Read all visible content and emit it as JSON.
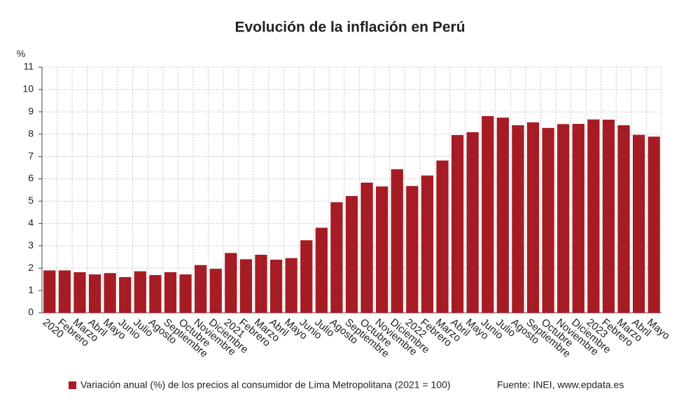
{
  "chart_data": {
    "type": "bar",
    "title": "Evolución de la inflación en Perú",
    "y_unit": "%",
    "categories": [
      "2020",
      "Febrero",
      "Marzo",
      "Abril",
      "Mayo",
      "Junio",
      "Julio",
      "Agosto",
      "Septiembre",
      "Octubre",
      "Noviembre",
      "Diciembre",
      "2021",
      "Febrero",
      "Marzo",
      "Abril",
      "Mayo",
      "Junio",
      "Julio",
      "Agosto",
      "Septiembre",
      "Octubre",
      "Noviembre",
      "Diciembre",
      "2022",
      "Febrero",
      "Marzo",
      "Abril",
      "Mayo",
      "Junio",
      "Julio",
      "Agosto",
      "Septiembre",
      "Octubre",
      "Noviembre",
      "Diciembre",
      "2023",
      "Febrero",
      "Marzo",
      "Abril",
      "Mayo"
    ],
    "series": [
      {
        "name": "Variación anual (%) de los precios al consumidor de Lima Metropolitana (2021 = 100)",
        "color": "#a61c24",
        "values": [
          1.9,
          1.9,
          1.82,
          1.72,
          1.78,
          1.6,
          1.86,
          1.69,
          1.82,
          1.72,
          2.14,
          1.97,
          2.68,
          2.4,
          2.6,
          2.38,
          2.45,
          3.25,
          3.81,
          4.95,
          5.23,
          5.83,
          5.66,
          6.43,
          5.68,
          6.15,
          6.82,
          7.96,
          8.09,
          8.81,
          8.74,
          8.4,
          8.53,
          8.28,
          8.45,
          8.46,
          8.66,
          8.65,
          8.4,
          7.97,
          7.89
        ]
      }
    ],
    "ylim": [
      0,
      11
    ],
    "yticks": [
      0,
      1,
      2,
      3,
      4,
      5,
      6,
      7,
      8,
      9,
      10,
      11
    ],
    "grid": true,
    "source": "Fuente: INEI, www.epdata.es"
  }
}
